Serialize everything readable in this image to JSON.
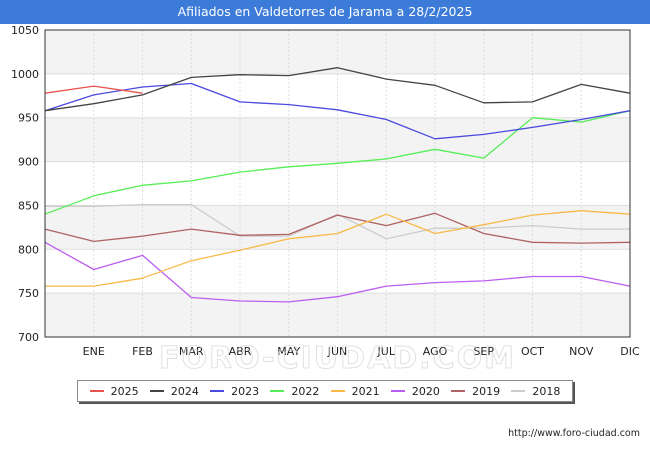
{
  "header": {
    "title": "Afiliados en Valdetorres de Jarama a 28/2/2025"
  },
  "watermark": "FORO-CIUDAD.COM",
  "footer": {
    "source": "http://www.foro-ciudad.com"
  },
  "chart_data": {
    "type": "line",
    "categories": [
      "",
      "ENE",
      "FEB",
      "MAR",
      "ABR",
      "MAY",
      "JUN",
      "JUL",
      "AGO",
      "SEP",
      "OCT",
      "NOV",
      "DIC"
    ],
    "y_ticks": [
      "700",
      "750",
      "800",
      "850",
      "900",
      "950",
      "1000",
      "1050"
    ],
    "ylim": [
      700,
      1050
    ],
    "grid": true,
    "legend_position": "bottom",
    "series": [
      {
        "name": "2025",
        "color": "#e8524f",
        "values": [
          978,
          986,
          978,
          null,
          null,
          null,
          null,
          null,
          null,
          null,
          null,
          null,
          null
        ]
      },
      {
        "name": "2024",
        "color": "#444444",
        "values": [
          958,
          966,
          976,
          996,
          999,
          998,
          1007,
          994,
          987,
          967,
          968,
          988,
          978
        ]
      },
      {
        "name": "2023",
        "color": "#4a4ae0",
        "values": [
          958,
          976,
          985,
          989,
          968,
          965,
          959,
          948,
          926,
          931,
          939,
          948,
          958
        ]
      },
      {
        "name": "2022",
        "color": "#55ee55",
        "values": [
          840,
          861,
          873,
          878,
          888,
          894,
          898,
          903,
          914,
          904,
          950,
          945,
          958
        ]
      },
      {
        "name": "2021",
        "color": "#f8b948",
        "values": [
          758,
          758,
          767,
          787,
          799,
          812,
          818,
          840,
          818,
          828,
          839,
          844,
          840
        ]
      },
      {
        "name": "2020",
        "color": "#bb5df0",
        "values": [
          808,
          777,
          793,
          745,
          741,
          740,
          746,
          758,
          762,
          764,
          769,
          769,
          758
        ]
      },
      {
        "name": "2019",
        "color": "#b06262",
        "values": [
          823,
          809,
          815,
          823,
          816,
          817,
          839,
          827,
          841,
          818,
          808,
          807,
          808
        ]
      },
      {
        "name": "2018",
        "color": "#cccccc",
        "values": [
          849,
          849,
          851,
          851,
          815,
          815,
          840,
          812,
          824,
          824,
          827,
          823,
          823
        ]
      }
    ]
  }
}
